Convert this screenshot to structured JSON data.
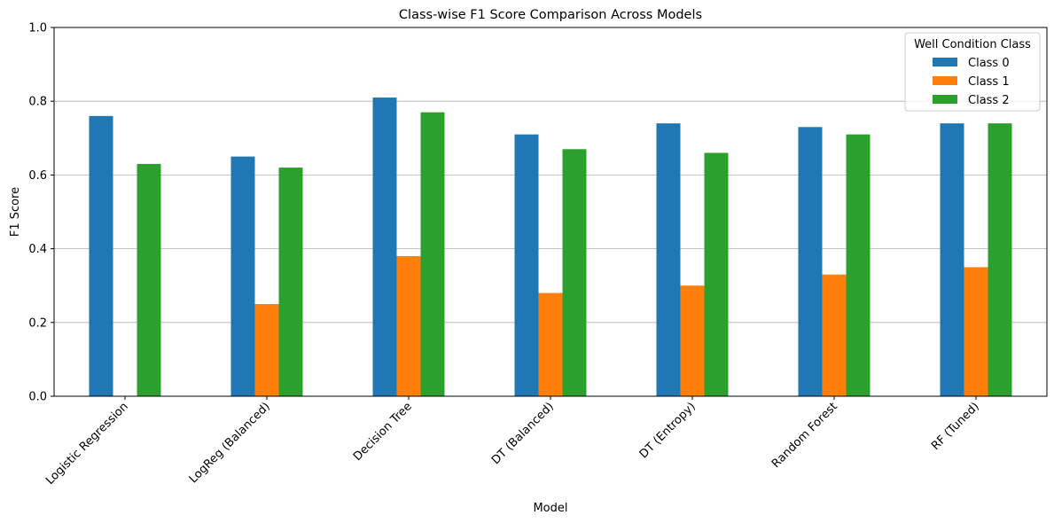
{
  "chart_data": {
    "type": "bar",
    "title": "Class-wise F1 Score Comparison Across Models",
    "xlabel": "Model",
    "ylabel": "F1 Score",
    "ylim": [
      0,
      1.0
    ],
    "yticks": [
      "0.0",
      "0.2",
      "0.4",
      "0.6",
      "0.8",
      "1.0"
    ],
    "grid": "y",
    "categories": [
      "Logistic Regression",
      "LogReg (Balanced)",
      "Decision Tree",
      "DT (Balanced)",
      "DT (Entropy)",
      "Random Forest",
      "RF (Tuned)"
    ],
    "legend": {
      "title": "Well Condition Class",
      "placement": "top-right"
    },
    "series": [
      {
        "name": "Class 0",
        "color": "#1f77b4",
        "values": [
          0.76,
          0.65,
          0.81,
          0.71,
          0.74,
          0.73,
          0.74
        ]
      },
      {
        "name": "Class 1",
        "color": "#ff7f0e",
        "values": [
          0.0,
          0.25,
          0.38,
          0.28,
          0.3,
          0.33,
          0.35
        ]
      },
      {
        "name": "Class 2",
        "color": "#2ca02c",
        "values": [
          0.63,
          0.62,
          0.77,
          0.67,
          0.66,
          0.71,
          0.74
        ]
      }
    ]
  }
}
